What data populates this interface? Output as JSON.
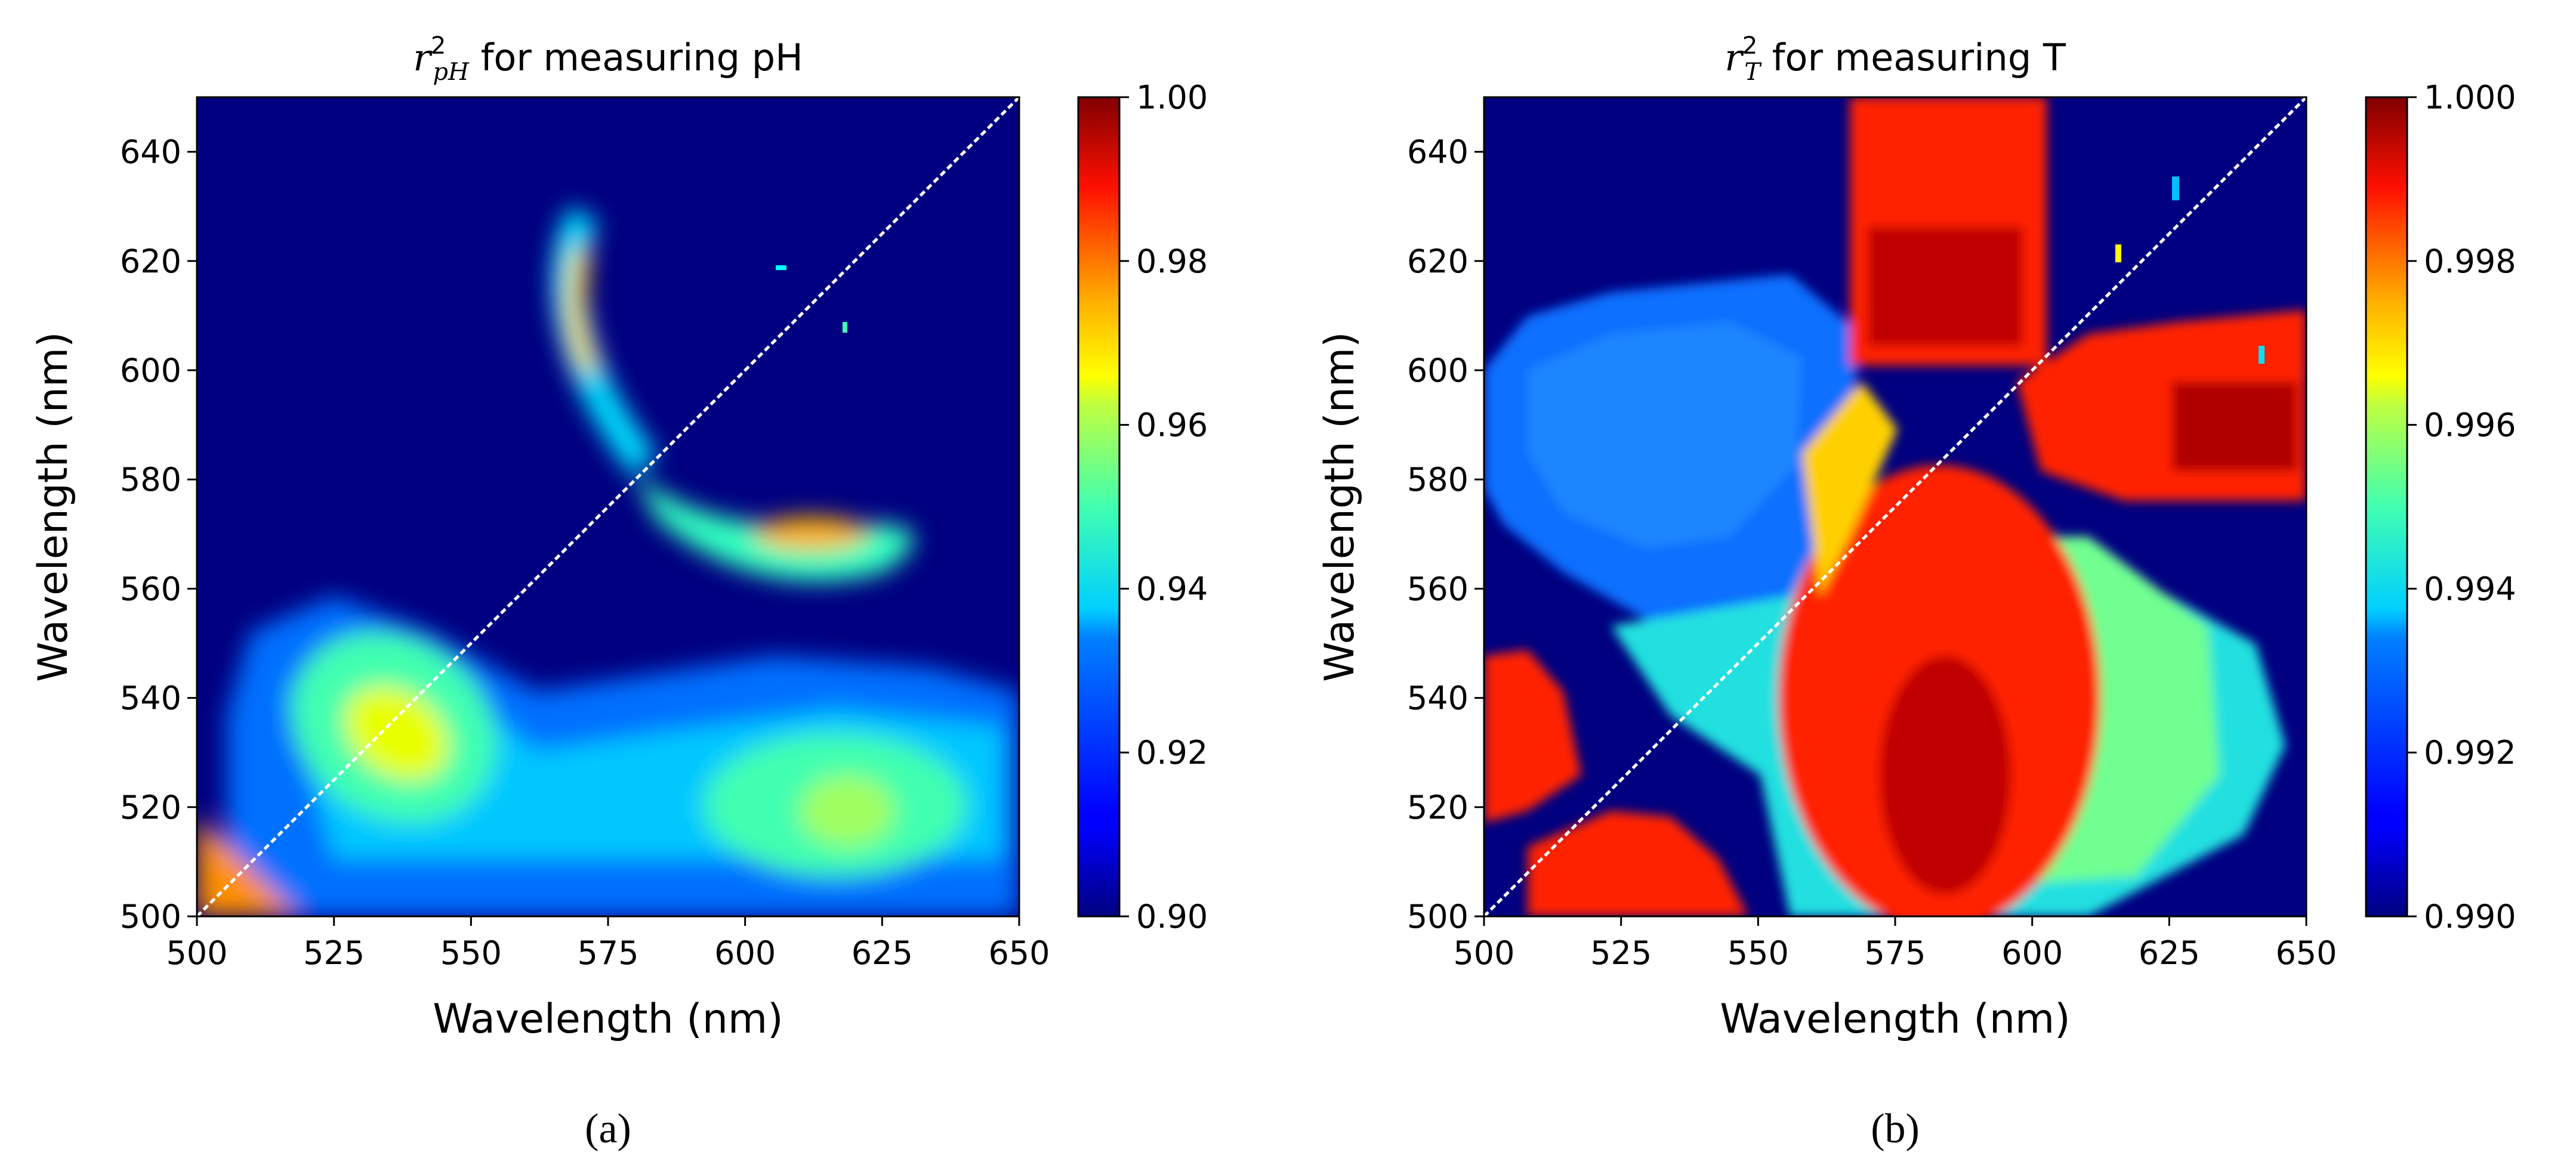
{
  "chart_data": [
    {
      "type": "heatmap",
      "panel_label": "(a)",
      "title": {
        "symbol": "r",
        "sub": "pH",
        "sup": "2",
        "rest": " for measuring pH"
      },
      "xlabel": "Wavelength (nm)",
      "ylabel": "Wavelength (nm)",
      "xlim": [
        500,
        650
      ],
      "ylim": [
        500,
        650
      ],
      "xticks": [
        500,
        525,
        550,
        575,
        600,
        625,
        650
      ],
      "yticks": [
        500,
        520,
        540,
        560,
        580,
        600,
        620,
        640
      ],
      "colorbar": {
        "min": 0.9,
        "max": 1.0,
        "ticks": [
          "0.90",
          "0.92",
          "0.94",
          "0.96",
          "0.98",
          "1.00"
        ],
        "colormap": "jet"
      },
      "diagonal": "x = y (white dashed)",
      "regions": [
        {
          "description": "lower-left corner near (500,500)",
          "x": [
            500,
            518
          ],
          "y": [
            500,
            518
          ],
          "peak_value": 0.975
        },
        {
          "description": "oval blob",
          "x_center": 537,
          "y_center": 528,
          "peak_value": 0.965
        },
        {
          "description": "broad lower band",
          "x": [
            520,
            650
          ],
          "y": [
            500,
            540
          ],
          "value_range": [
            0.92,
            0.955
          ],
          "peak_at": [
            617,
            518
          ]
        },
        {
          "description": "upper arc",
          "x_center": 570,
          "y_center": 610,
          "peak_value": 0.975
        },
        {
          "description": "horizontal lobe",
          "x_center": 615,
          "y_center": 570,
          "peak_value": 0.975
        }
      ]
    },
    {
      "type": "heatmap",
      "panel_label": "(b)",
      "title": {
        "symbol": "r",
        "sub": "T",
        "sup": "2",
        "rest": " for measuring T"
      },
      "xlabel": "Wavelength (nm)",
      "ylabel": "Wavelength (nm)",
      "xlim": [
        500,
        650
      ],
      "ylim": [
        500,
        650
      ],
      "xticks": [
        500,
        525,
        550,
        575,
        600,
        625,
        650
      ],
      "yticks": [
        500,
        520,
        540,
        560,
        580,
        600,
        620,
        640
      ],
      "colorbar": {
        "min": 0.99,
        "max": 1.0,
        "ticks": [
          "0.990",
          "0.992",
          "0.994",
          "0.996",
          "0.998",
          "1.000"
        ],
        "colormap": "jet"
      },
      "diagonal": "x = y (white dashed)",
      "regions": [
        {
          "description": "upper red block",
          "x": [
            560,
            600
          ],
          "y": [
            598,
            650
          ],
          "value": 0.9995
        },
        {
          "description": "lower red oval",
          "x_center": 583,
          "y_center": 530,
          "value": 0.9995
        },
        {
          "description": "right red band",
          "x": [
            600,
            650
          ],
          "y": [
            568,
            605
          ],
          "value": 0.9995
        },
        {
          "description": "left blue lobe",
          "x_center": 530,
          "y_center": 585,
          "value": 0.992
        },
        {
          "description": "lower-left red corners",
          "x": [
            500,
            545
          ],
          "y": [
            500,
            548
          ],
          "value": 0.9995
        }
      ]
    }
  ]
}
